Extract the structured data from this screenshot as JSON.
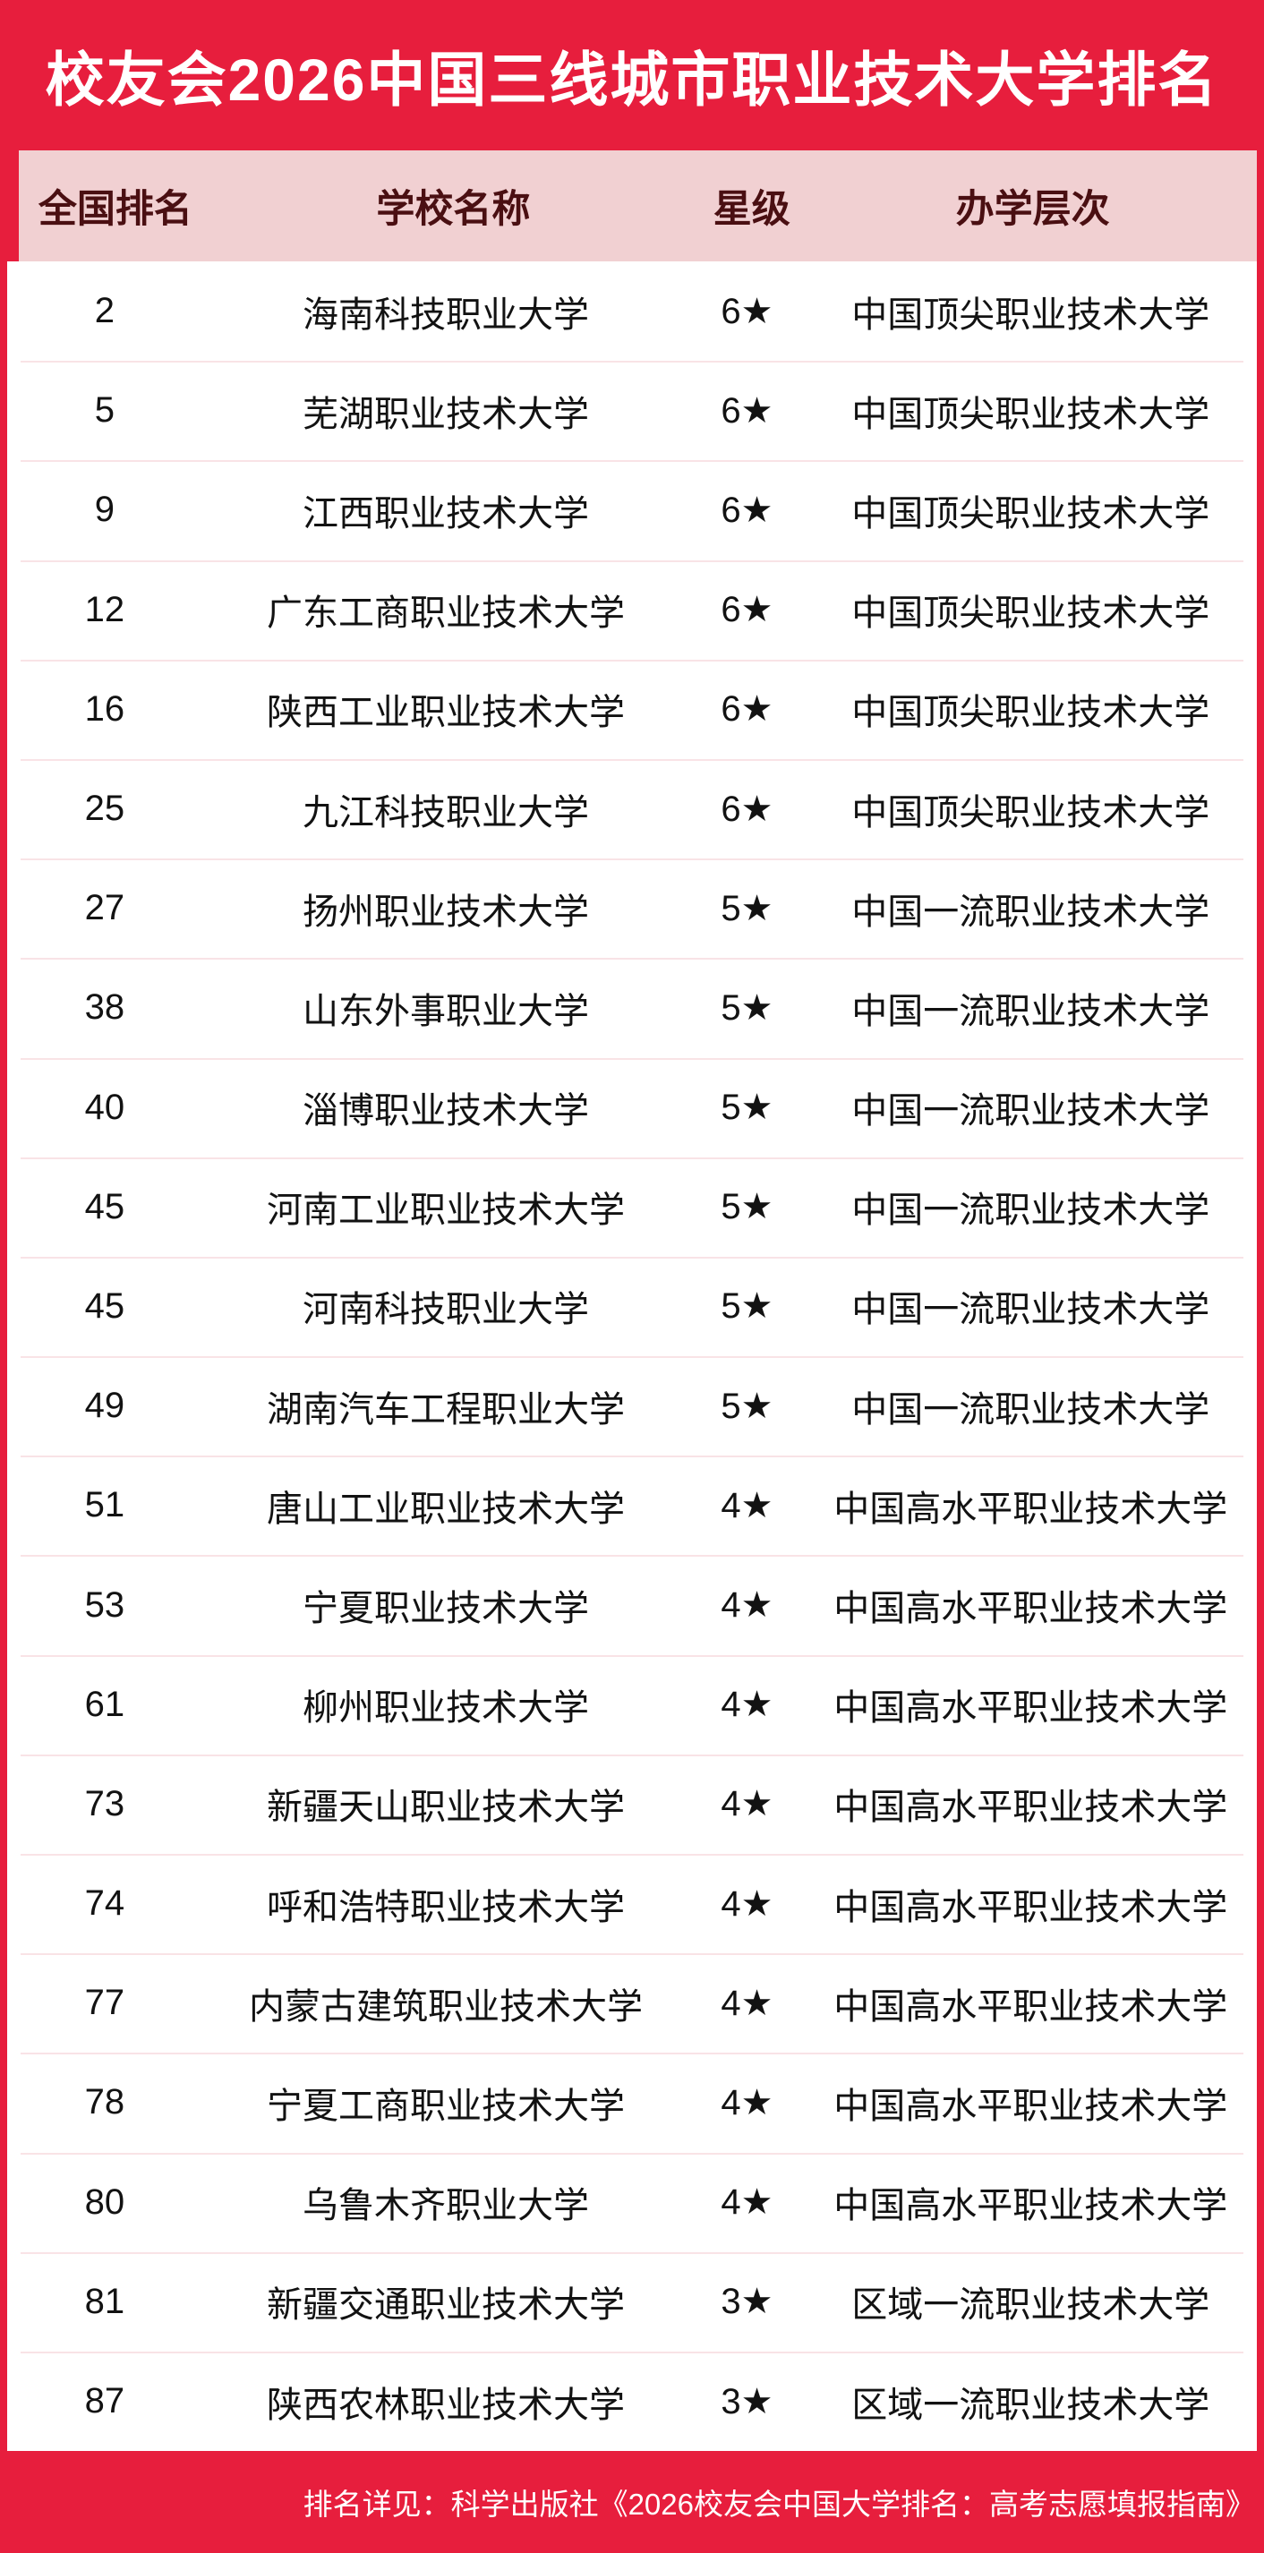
{
  "title": "校友会2026中国三线城市职业技术大学排名",
  "colors": {
    "banner_red": "#e71e3d",
    "header_pink": "#f1d0d2",
    "header_text_maroon": "#4a0f12",
    "row_background": "#ffffff",
    "row_text": "#121212",
    "row_separator": "#f9e3e6",
    "title_text": "#ffffff",
    "footer_text": "#ffffff"
  },
  "chart_data": {
    "type": "table",
    "title": "校友会2026中国三线城市职业技术大学排名",
    "columns": [
      "全国排名",
      "学校名称",
      "星级",
      "办学层次"
    ],
    "rows": [
      [
        "2",
        "海南科技职业大学",
        "6★",
        "中国顶尖职业技术大学"
      ],
      [
        "5",
        "芜湖职业技术大学",
        "6★",
        "中国顶尖职业技术大学"
      ],
      [
        "9",
        "江西职业技术大学",
        "6★",
        "中国顶尖职业技术大学"
      ],
      [
        "12",
        "广东工商职业技术大学",
        "6★",
        "中国顶尖职业技术大学"
      ],
      [
        "16",
        "陕西工业职业技术大学",
        "6★",
        "中国顶尖职业技术大学"
      ],
      [
        "25",
        "九江科技职业大学",
        "6★",
        "中国顶尖职业技术大学"
      ],
      [
        "27",
        "扬州职业技术大学",
        "5★",
        "中国一流职业技术大学"
      ],
      [
        "38",
        "山东外事职业大学",
        "5★",
        "中国一流职业技术大学"
      ],
      [
        "40",
        "淄博职业技术大学",
        "5★",
        "中国一流职业技术大学"
      ],
      [
        "45",
        "河南工业职业技术大学",
        "5★",
        "中国一流职业技术大学"
      ],
      [
        "45",
        "河南科技职业大学",
        "5★",
        "中国一流职业技术大学"
      ],
      [
        "49",
        "湖南汽车工程职业大学",
        "5★",
        "中国一流职业技术大学"
      ],
      [
        "51",
        "唐山工业职业技术大学",
        "4★",
        "中国高水平职业技术大学"
      ],
      [
        "53",
        "宁夏职业技术大学",
        "4★",
        "中国高水平职业技术大学"
      ],
      [
        "61",
        "柳州职业技术大学",
        "4★",
        "中国高水平职业技术大学"
      ],
      [
        "73",
        "新疆天山职业技术大学",
        "4★",
        "中国高水平职业技术大学"
      ],
      [
        "74",
        "呼和浩特职业技术大学",
        "4★",
        "中国高水平职业技术大学"
      ],
      [
        "77",
        "内蒙古建筑职业技术大学",
        "4★",
        "中国高水平职业技术大学"
      ],
      [
        "78",
        "宁夏工商职业技术大学",
        "4★",
        "中国高水平职业技术大学"
      ],
      [
        "80",
        "乌鲁木齐职业大学",
        "4★",
        "中国高水平职业技术大学"
      ],
      [
        "81",
        "新疆交通职业技术大学",
        "3★",
        "区域一流职业技术大学"
      ],
      [
        "87",
        "陕西农林职业技术大学",
        "3★",
        "区域一流职业技术大学"
      ]
    ]
  },
  "footer": {
    "note": "排名详见：科学出版社《2026校友会中国大学排名：高考志愿填报指南》"
  }
}
